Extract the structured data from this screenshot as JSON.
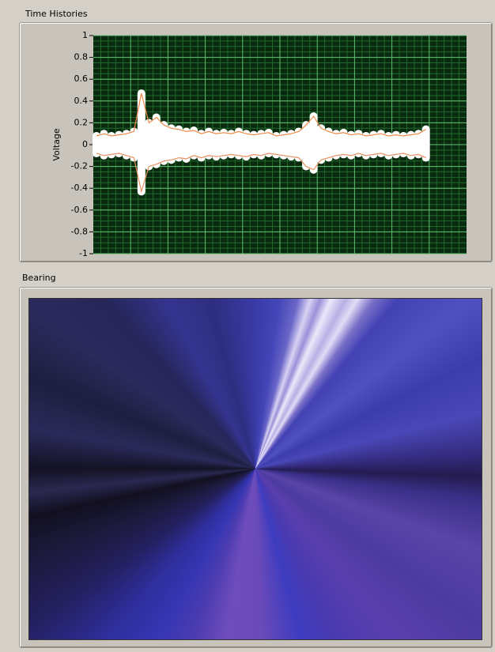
{
  "time_histories": {
    "label": "Time Histories",
    "y_label": "Voltage",
    "ylim": [
      -1,
      1
    ],
    "yticks": [
      1,
      0.8,
      0.6,
      0.4,
      0.2,
      0,
      -0.2,
      -0.4,
      -0.6,
      -0.8,
      -1
    ],
    "series": {
      "upper": [
        0.08,
        0.1,
        0.08,
        0.09,
        0.1,
        0.12,
        0.47,
        0.2,
        0.25,
        0.18,
        0.15,
        0.14,
        0.12,
        0.13,
        0.1,
        0.12,
        0.1,
        0.11,
        0.1,
        0.12,
        0.1,
        0.09,
        0.1,
        0.11,
        0.08,
        0.09,
        0.1,
        0.12,
        0.18,
        0.26,
        0.15,
        0.12,
        0.1,
        0.11,
        0.09,
        0.1,
        0.08,
        0.09,
        0.1,
        0.08,
        0.09,
        0.08,
        0.09,
        0.1,
        0.14,
        null,
        null,
        null,
        null,
        null
      ],
      "lower": [
        -0.08,
        -0.1,
        -0.09,
        -0.08,
        -0.1,
        -0.12,
        -0.43,
        -0.2,
        -0.18,
        -0.15,
        -0.14,
        -0.12,
        -0.13,
        -0.1,
        -0.12,
        -0.1,
        -0.11,
        -0.1,
        -0.09,
        -0.1,
        -0.11,
        -0.09,
        -0.1,
        -0.08,
        -0.09,
        -0.1,
        -0.11,
        -0.12,
        -0.2,
        -0.23,
        -0.14,
        -0.12,
        -0.1,
        -0.09,
        -0.1,
        -0.08,
        -0.1,
        -0.09,
        -0.08,
        -0.1,
        -0.09,
        -0.08,
        -0.1,
        -0.09,
        -0.12,
        null,
        null,
        null,
        null,
        null
      ]
    }
  },
  "bearing": {
    "label": "Bearing"
  }
}
